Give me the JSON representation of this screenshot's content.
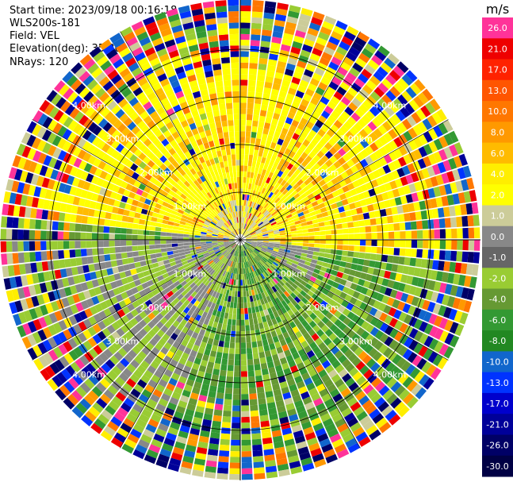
{
  "info": {
    "start_time": "Start time: 2023/09/18 00:16:18",
    "instrument": "WLS200s-181",
    "field": "Field: VEL",
    "elevation": "Elevation(deg): 35.30",
    "nrays": "NRays: 120"
  },
  "chart_data": {
    "type": "heatmap",
    "subtype": "radar-ppi",
    "field": "VEL",
    "nrays": 120,
    "range_rings_km": [
      1.0,
      2.0,
      3.0,
      4.0
    ],
    "range_ring_labels": [
      "1.00km",
      "2.00km",
      "3.00km",
      "4.00km"
    ],
    "spoke_angles_deg": [
      0,
      30,
      60,
      90,
      120,
      150,
      180,
      210,
      240,
      270,
      300,
      330
    ],
    "colorbar": {
      "unit": "m/s",
      "tick_labels": [
        "26.0",
        "21.0",
        "17.0",
        "13.0",
        "10.0",
        "8.0",
        "6.0",
        "4.0",
        "2.0",
        "1.0",
        "0.0",
        "-1.0",
        "-2.0",
        "-4.0",
        "-6.0",
        "-8.0",
        "-10.0",
        "-13.0",
        "-17.0",
        "-21.0",
        "-26.0",
        "-30.0"
      ],
      "colors": [
        "#ff3399",
        "#ee0000",
        "#ff2200",
        "#ff5500",
        "#ff7700",
        "#ff9900",
        "#ffbb00",
        "#ffee00",
        "#ffff00",
        "#cccc99",
        "#888888",
        "#666666",
        "#99cc33",
        "#669933",
        "#339933",
        "#228822",
        "#1166cc",
        "#0033ff",
        "#0000cc",
        "#000099",
        "#000066",
        "#000044"
      ]
    }
  }
}
